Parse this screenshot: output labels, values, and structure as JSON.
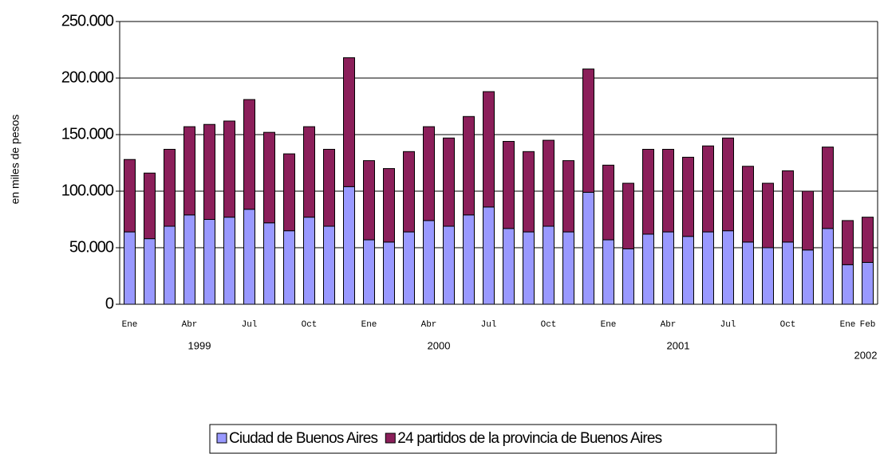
{
  "chart_data": {
    "type": "stacked-bar",
    "y_label": "en miles de pesos",
    "categories": [
      "Ene",
      null,
      null,
      "Abr",
      null,
      null,
      "Jul",
      null,
      null,
      "Oct",
      null,
      null,
      "Ene",
      null,
      null,
      "Abr",
      null,
      null,
      "Jul",
      null,
      null,
      "Oct",
      null,
      null,
      "Ene",
      null,
      null,
      "Abr",
      null,
      null,
      "Jul",
      null,
      null,
      "Oct",
      null,
      null,
      "Ene",
      "Feb"
    ],
    "category_groups": [
      {
        "label": "1999",
        "span": 12
      },
      {
        "label": "2000",
        "span": 12
      },
      {
        "label": "2001",
        "span": 12
      },
      {
        "label": "2002",
        "span": 2
      }
    ],
    "series": [
      {
        "name": "Ciudad de Buenos Aires",
        "color": "#9999ff",
        "values": [
          64000,
          58000,
          69000,
          79000,
          75000,
          77000,
          84000,
          72000,
          65000,
          77000,
          69000,
          104000,
          57000,
          55000,
          64000,
          74000,
          69000,
          79000,
          86000,
          67000,
          64000,
          69000,
          64000,
          99000,
          57000,
          49000,
          62000,
          64000,
          60000,
          64000,
          65000,
          55000,
          50000,
          55000,
          48000,
          67000,
          35000,
          37000
        ]
      },
      {
        "name": "24 partidos de la provincia de Buenos Aires",
        "color": "#8b1f5a",
        "values": [
          64000,
          58000,
          68000,
          78000,
          84000,
          85000,
          97000,
          80000,
          68000,
          80000,
          68000,
          114000,
          70000,
          65000,
          71000,
          83000,
          78000,
          87000,
          102000,
          77000,
          71000,
          76000,
          63000,
          109000,
          66000,
          58000,
          75000,
          73000,
          70000,
          76000,
          82000,
          67000,
          57000,
          63000,
          52000,
          72000,
          39000,
          40000
        ]
      }
    ],
    "ylim": [
      0,
      250000
    ],
    "yticks": [
      0,
      {
        "value": 50000,
        "label": "50.000"
      },
      {
        "value": 100000,
        "label": "100.000"
      },
      {
        "value": 150000,
        "label": "150.000"
      },
      {
        "value": 200000,
        "label": "200.000"
      },
      {
        "value": 250000,
        "label": "250.000"
      }
    ],
    "grid": true,
    "legend": "bottom"
  }
}
